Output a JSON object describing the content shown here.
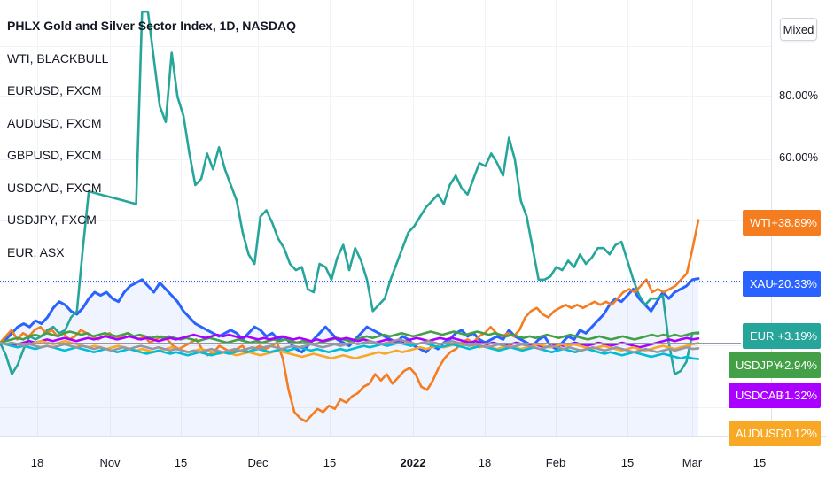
{
  "legend": {
    "main": "PHLX Gold and Silver Sector Index, 1D, NASDAQ",
    "items": [
      "WTI, BLACKBULL",
      "EURUSD, FXCM",
      "AUDUSD, FXCM",
      "GBPUSD, FXCM",
      "USDCAD, FXCM",
      "USDJPY, FXCM",
      "EUR, ASX"
    ]
  },
  "toolbar": {
    "scale_mode": "Mixed"
  },
  "chart_data": {
    "type": "line",
    "y_ticks": [
      "80.00%",
      "60.00%"
    ],
    "x_ticks": [
      "18",
      "Nov",
      "15",
      "Dec",
      "15",
      "2022",
      "18",
      "Feb",
      "15",
      "Mar",
      "15"
    ],
    "price_labels": [
      {
        "name": "WTI",
        "value": "+38.89%",
        "color": "#f57c1f"
      },
      {
        "name": "XAU",
        "value": "+20.33%",
        "color": "#2962ff"
      },
      {
        "name": "EUR",
        "value": "+3.19%",
        "color": "#26a69a"
      },
      {
        "name": "USDJPY",
        "value": "+2.94%",
        "color": "#43a047"
      },
      {
        "name": "USDCAD",
        "value": "+1.32%",
        "color": "#aa00ff"
      },
      {
        "name": "AUDUSD",
        "value": "-0.12%",
        "color": "#f9a825"
      }
    ],
    "series": [
      {
        "id": "gold",
        "color": "#2962ff",
        "area": true,
        "values": [
          0,
          1,
          3,
          5,
          6,
          5,
          7,
          6,
          8,
          11,
          13,
          12,
          10,
          9,
          11,
          14,
          16,
          15,
          16,
          14,
          13,
          16,
          18,
          19,
          20,
          18,
          16,
          19,
          17,
          15,
          13,
          10,
          8,
          6,
          5,
          4,
          3,
          2,
          3,
          4,
          3,
          1,
          3,
          5,
          4,
          2,
          3,
          1,
          2,
          0,
          -2,
          -3,
          -1,
          1,
          3,
          5,
          3,
          1,
          0,
          -1,
          1,
          3,
          5,
          4,
          3,
          2,
          1,
          0,
          2,
          1,
          -1,
          -2,
          -3,
          -1,
          -2,
          0,
          1,
          3,
          4,
          2,
          3,
          1,
          0,
          1,
          2,
          1,
          4,
          2,
          1,
          0,
          -1,
          1,
          2,
          -1,
          -2,
          0,
          2,
          1,
          4,
          3,
          5,
          7,
          9,
          12,
          14,
          13,
          15,
          17,
          14,
          12,
          10,
          13,
          16,
          14,
          16,
          17,
          18,
          20,
          20.33
        ]
      },
      {
        "id": "eur",
        "color": "#26a69a",
        "area": false,
        "values": [
          0,
          -4,
          -10,
          -7,
          -2,
          2,
          1,
          2,
          4,
          5,
          3,
          4,
          8,
          10,
          30,
          48,
          47.5,
          47,
          46.5,
          46,
          45.5,
          45,
          44.5,
          44,
          105,
          105,
          90,
          75,
          70,
          92,
          78,
          72,
          60,
          50,
          52,
          60,
          55,
          62,
          55,
          50,
          45,
          35,
          28,
          25,
          40,
          42,
          38,
          33,
          30,
          25,
          23,
          24,
          17,
          16,
          25,
          24,
          20,
          27,
          31,
          23,
          30,
          26,
          20,
          10,
          12,
          14,
          20,
          25,
          30,
          35,
          37,
          40,
          43,
          45,
          47,
          44,
          50,
          53,
          49,
          47,
          52,
          57,
          56,
          60,
          57,
          53,
          65,
          58,
          45,
          40,
          30,
          20,
          20,
          21,
          24,
          23,
          26,
          24,
          28,
          25,
          27,
          30,
          30,
          28,
          31,
          32,
          26,
          20,
          15,
          12,
          14,
          14,
          15,
          0,
          -10,
          -9,
          -6,
          3,
          3.19
        ]
      },
      {
        "id": "wti",
        "color": "#f57c1f",
        "area": false,
        "values": [
          0,
          2,
          4,
          1,
          3,
          2,
          4,
          5,
          3,
          4,
          2,
          3,
          1,
          2,
          4,
          3,
          2,
          1,
          2,
          3,
          1,
          2,
          3,
          2,
          1,
          2,
          0,
          1,
          2,
          1,
          -1,
          -2,
          -1,
          0,
          1,
          -2,
          -4,
          -3,
          -1,
          -2,
          -3,
          -2,
          -1,
          -3,
          -2,
          -1,
          -2,
          -1,
          0,
          -5,
          -15,
          -22,
          -24,
          -25,
          -23,
          -21,
          -22,
          -20,
          -21,
          -18,
          -19,
          -17,
          -16,
          -14,
          -13,
          -10,
          -12,
          -10,
          -13,
          -11,
          -9,
          -8,
          -10,
          -14,
          -15,
          -12,
          -8,
          -5,
          -3,
          -2,
          0,
          1,
          0,
          2,
          3,
          5,
          3,
          2,
          3,
          2,
          4,
          8,
          10,
          11,
          9,
          8,
          10,
          11,
          12,
          11,
          12,
          11,
          12,
          13,
          12,
          13,
          12,
          14,
          16,
          17,
          16,
          18,
          20,
          16,
          17,
          16,
          17,
          18,
          20,
          22,
          30,
          38.89
        ]
      },
      {
        "id": "jpy",
        "color": "#43a047",
        "area": false,
        "values": [
          0,
          0.5,
          1,
          1.5,
          1,
          2,
          2.5,
          2,
          3,
          2.5,
          2,
          3,
          3.5,
          3,
          2.5,
          3,
          2,
          2.5,
          3,
          2.5,
          2,
          2.5,
          3,
          2,
          2.5,
          2,
          1.5,
          2,
          1.5,
          2,
          1.5,
          1,
          1.5,
          1,
          0.5,
          1,
          1.5,
          1,
          0.5,
          0,
          0.5,
          1,
          0.5,
          0,
          0.5,
          0,
          0.5,
          1,
          0.5,
          1,
          0.5,
          0,
          0.5,
          0,
          -0.5,
          0,
          0.5,
          1,
          1.5,
          1,
          0.5,
          1,
          1.5,
          2,
          1.5,
          2,
          2.5,
          2,
          2.5,
          3,
          2.5,
          2,
          2.5,
          3,
          3.5,
          3,
          2.5,
          3,
          3.5,
          3,
          2.5,
          3,
          3.5,
          3,
          2.5,
          3,
          2.5,
          2,
          2.5,
          2,
          1.5,
          2,
          1.5,
          2,
          2.5,
          2,
          1.5,
          2,
          2.5,
          2,
          1.5,
          1,
          1.5,
          2,
          1.5,
          1,
          1.5,
          2,
          1.5,
          1,
          1.5,
          2,
          2.5,
          2,
          2.5,
          2,
          2.5,
          2,
          2.5,
          3,
          2.94
        ]
      },
      {
        "id": "cad",
        "color": "#aa00ff",
        "area": false,
        "values": [
          0,
          -0.5,
          -1,
          -0.5,
          0,
          0.5,
          0,
          0.5,
          1,
          0.5,
          1,
          1.5,
          1,
          0.5,
          1,
          1.5,
          1,
          1.5,
          2,
          1.5,
          1,
          1.5,
          2,
          1.5,
          1,
          1.5,
          1,
          0.5,
          1,
          1.5,
          1,
          1.5,
          2,
          2.5,
          2,
          1.5,
          2,
          2.5,
          2,
          2.5,
          2,
          1.5,
          2,
          1.5,
          1,
          1.5,
          1,
          1.5,
          2,
          1.5,
          1,
          1.5,
          1,
          0.5,
          1,
          0.5,
          1,
          1.5,
          1,
          1.5,
          1,
          0.5,
          1,
          0.5,
          0,
          0.5,
          1,
          0.5,
          0,
          0.5,
          1,
          1.5,
          1,
          0.5,
          1,
          1.5,
          1,
          1.5,
          1,
          0.5,
          0,
          0.5,
          0,
          -0.5,
          0,
          -0.5,
          -1,
          -0.5,
          0,
          -0.5,
          -1,
          -0.5,
          -1,
          -1.5,
          -1,
          -0.5,
          -1,
          -0.5,
          0,
          -0.5,
          -1,
          -0.5,
          0,
          -0.5,
          -1,
          -0.5,
          0,
          -0.5,
          -1,
          -1.5,
          -1,
          -0.5,
          0,
          0.5,
          1,
          0.5,
          1,
          1.5,
          1,
          1.32
        ]
      },
      {
        "id": "aud",
        "color": "#f9a825",
        "area": false,
        "values": [
          0,
          -0.5,
          -1,
          -1.5,
          -1,
          -0.5,
          0,
          0.5,
          0,
          -0.5,
          0,
          0.5,
          0,
          -0.5,
          -1,
          -1.5,
          -1,
          -1.5,
          -2,
          -1.5,
          -1,
          -1.5,
          -2,
          -2.5,
          -2,
          -2.5,
          -3,
          -2.5,
          -2,
          -1.5,
          -2,
          -2.5,
          -3,
          -2.5,
          -2,
          -2.5,
          -3,
          -3.5,
          -3,
          -3.5,
          -4,
          -3.5,
          -3,
          -3.5,
          -4,
          -3.5,
          -3,
          -2.5,
          -3,
          -3.5,
          -4,
          -4.5,
          -4,
          -3.5,
          -4,
          -4.5,
          -5,
          -4.5,
          -4,
          -4.5,
          -5,
          -4.5,
          -4,
          -3.5,
          -3,
          -3.5,
          -3,
          -2.5,
          -3,
          -2.5,
          -2,
          -1.5,
          -2,
          -1.5,
          -1,
          -1.5,
          -1,
          -0.5,
          -1,
          -0.5,
          -1,
          -1.5,
          -1,
          -1.5,
          -2,
          -1.5,
          -1,
          -1.5,
          -2,
          -1.5,
          -1,
          -0.5,
          -1,
          -1.5,
          -1,
          -0.5,
          -1,
          -0.5,
          -1,
          -1.5,
          -2,
          -1.5,
          -1,
          -1.5,
          -2,
          -2.5,
          -2,
          -1.5,
          -2,
          -2.5,
          -2,
          -1.5,
          -1,
          -1.5,
          -2,
          -1.5,
          -1,
          -0.5,
          -0.12
        ]
      },
      {
        "id": "gbp",
        "color": "#00bcd4",
        "area": false,
        "values": [
          0,
          -0.5,
          -1,
          -1.5,
          -1,
          -1.5,
          -2,
          -1.5,
          -1,
          -1.5,
          -2,
          -2.5,
          -2,
          -1.5,
          -2,
          -2.5,
          -3,
          -2.5,
          -2,
          -2.5,
          -3,
          -2.5,
          -2,
          -2.5,
          -3,
          -3.5,
          -3,
          -2.5,
          -3,
          -3.5,
          -3,
          -3.5,
          -4,
          -3.5,
          -3,
          -3.5,
          -4,
          -3.5,
          -3,
          -3.5,
          -3,
          -2.5,
          -3,
          -2.5,
          -2,
          -2.5,
          -3,
          -2.5,
          -2,
          -2.5,
          -2,
          -1.5,
          -2,
          -2.5,
          -2,
          -2.5,
          -3,
          -2.5,
          -2,
          -2.5,
          -2,
          -1.5,
          -1,
          -1.5,
          -1,
          -0.5,
          -1,
          -0.5,
          0,
          -0.5,
          -1,
          -0.5,
          0,
          -0.5,
          -1,
          -1.5,
          -1,
          -0.5,
          -1,
          -1.5,
          -2,
          -1.5,
          -1,
          -1.5,
          -2,
          -2.5,
          -2,
          -1.5,
          -2,
          -2.5,
          -2,
          -1.5,
          -2,
          -2.5,
          -3,
          -2.5,
          -2,
          -2.5,
          -3,
          -2.5,
          -2,
          -2.5,
          -3,
          -3.5,
          -3,
          -3.5,
          -4,
          -3.5,
          -3,
          -3.5,
          -4,
          -4.5,
          -4,
          -3.5,
          -4,
          -4.5,
          -5,
          -4.5,
          -5,
          -5.2
        ]
      },
      {
        "id": "eurusd",
        "color": "#9598a1",
        "area": false,
        "values": [
          0,
          -0.5,
          0,
          -0.5,
          -1,
          -0.5,
          -1,
          -1.5,
          -1,
          -1.5,
          -1,
          -0.5,
          -1,
          -1.5,
          -1,
          -1.5,
          -2,
          -1.5,
          -2,
          -2.5,
          -2,
          -1.5,
          -2,
          -1.5,
          -1,
          -1.5,
          -2,
          -1.5,
          -2,
          -2.5,
          -2,
          -2.5,
          -3,
          -2.5,
          -3,
          -2.5,
          -2,
          -2.5,
          -3,
          -2.5,
          -2,
          -2.5,
          -2,
          -1.5,
          -2,
          -1.5,
          -1,
          -1.5,
          -2,
          -1.5,
          -1,
          -1.5,
          -1,
          -0.5,
          -1,
          -1.5,
          -1,
          -0.5,
          -1,
          -0.5,
          0,
          -0.5,
          0,
          0.5,
          0,
          -0.5,
          0,
          0.5,
          1,
          0.5,
          0,
          -0.5,
          0,
          0.5,
          0,
          -0.5,
          0,
          0.5,
          0,
          -0.5,
          -1,
          -0.5,
          -1,
          -1.5,
          -1,
          -0.5,
          -1,
          -1.5,
          -1,
          -0.5,
          -1,
          -1.5,
          -2,
          -1.5,
          -1,
          -1.5,
          -2,
          -1.5,
          -2,
          -2.5,
          -2,
          -1.5,
          -2,
          -2.5,
          -2,
          -1.5,
          -2,
          -2.5,
          -3,
          -2.5,
          -2,
          -2.5,
          -3,
          -2.5,
          -2,
          -2.5,
          -2,
          -1.5,
          -2,
          -1.8
        ]
      }
    ]
  }
}
